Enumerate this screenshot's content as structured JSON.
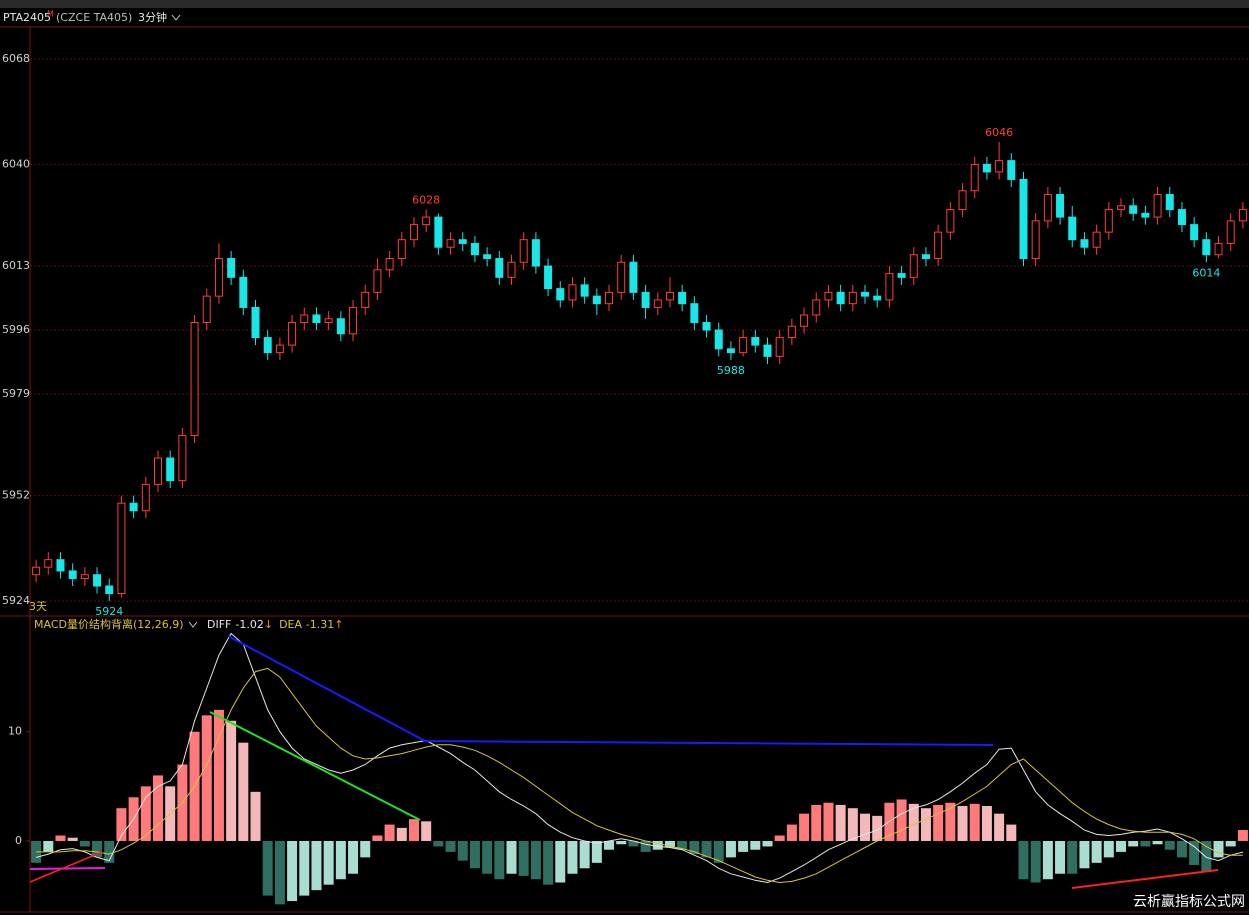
{
  "header": {
    "symbol": "PTA2405",
    "flag": "M",
    "exchange": "(CZCE TA405)",
    "period": "3分钟"
  },
  "watermark": "云析赢指标公式网",
  "chart_data": [
    {
      "type": "candlestick",
      "open": [
        5931,
        5933,
        5935,
        5932,
        5930,
        5931,
        5928,
        5926,
        5950,
        5948,
        5955,
        5962,
        5956,
        5968,
        5998,
        6005,
        6015,
        6010,
        6002,
        5994,
        5990,
        5992,
        5998,
        6000,
        5998,
        5999,
        5995,
        6002,
        6006,
        6012,
        6015,
        6020,
        6024,
        6026,
        6018,
        6020,
        6019,
        6016,
        6015,
        6010,
        6014,
        6020,
        6013,
        6007,
        6004,
        6008,
        6005,
        6003,
        6006,
        6014,
        6006,
        6002,
        6004,
        6006,
        6003,
        5998,
        5996,
        5991,
        5990,
        5994,
        5992,
        5989,
        5994,
        5997,
        6000,
        6004,
        6006,
        6003,
        6006,
        6005,
        6004,
        6011,
        6010,
        6016,
        6015,
        6022,
        6028,
        6033,
        6040,
        6038,
        6041,
        6036,
        6015,
        6025,
        6032,
        6026,
        6020,
        6018,
        6022,
        6028,
        6029,
        6027,
        6026,
        6032,
        6028,
        6024,
        6020,
        6016,
        6019,
        6025
      ],
      "high": [
        5935,
        5937,
        5937,
        5934,
        5933,
        5933,
        5930,
        5952,
        5952,
        5957,
        5964,
        5964,
        5970,
        6000,
        6007,
        6019,
        6017,
        6012,
        6004,
        5996,
        5994,
        6000,
        6002,
        6002,
        6001,
        6001,
        6004,
        6008,
        6015,
        6017,
        6022,
        6026,
        6028,
        6027,
        6022,
        6022,
        6021,
        6018,
        6017,
        6016,
        6022,
        6022,
        6015,
        6009,
        6010,
        6010,
        6007,
        6008,
        6016,
        6016,
        6008,
        6006,
        6010,
        6008,
        6005,
        6000,
        5998,
        5993,
        5996,
        5996,
        5994,
        5996,
        5999,
        6002,
        6006,
        6008,
        6008,
        6008,
        6008,
        6007,
        6013,
        6013,
        6018,
        6018,
        6024,
        6030,
        6035,
        6042,
        6042,
        6046,
        6043,
        6038,
        6027,
        6034,
        6034,
        6029,
        6022,
        6024,
        6030,
        6031,
        6031,
        6029,
        6034,
        6034,
        6030,
        6026,
        6022,
        6021,
        6027,
        6030
      ],
      "low": [
        5929,
        5931,
        5930,
        5928,
        5928,
        5926,
        5924,
        5925,
        5946,
        5946,
        5953,
        5954,
        5954,
        5966,
        5996,
        6003,
        6008,
        6000,
        5992,
        5988,
        5988,
        5990,
        5996,
        5996,
        5996,
        5993,
        5993,
        6000,
        6004,
        6010,
        6013,
        6018,
        6022,
        6016,
        6016,
        6017,
        6014,
        6013,
        6008,
        6008,
        6012,
        6011,
        6005,
        6002,
        6002,
        6003,
        6000,
        6001,
        6004,
        6004,
        5999,
        6000,
        6002,
        6001,
        5996,
        5994,
        5989,
        5988,
        5989,
        5990,
        5987,
        5987,
        5992,
        5995,
        5998,
        6002,
        6001,
        6001,
        6003,
        6002,
        6002,
        6008,
        6008,
        6013,
        6013,
        6020,
        6026,
        6031,
        6036,
        6036,
        6034,
        6013,
        6013,
        6023,
        6024,
        6018,
        6016,
        6016,
        6020,
        6026,
        6025,
        6024,
        6024,
        6026,
        6022,
        6018,
        6014,
        6015,
        6017,
        6023
      ],
      "close": [
        5933,
        5935,
        5932,
        5930,
        5931,
        5928,
        5926,
        5950,
        5948,
        5955,
        5962,
        5956,
        5968,
        5998,
        6005,
        6015,
        6010,
        6002,
        5994,
        5990,
        5992,
        5998,
        6000,
        5998,
        5999,
        5995,
        6002,
        6006,
        6012,
        6015,
        6020,
        6024,
        6026,
        6018,
        6020,
        6019,
        6016,
        6015,
        6010,
        6014,
        6020,
        6013,
        6007,
        6004,
        6008,
        6005,
        6003,
        6006,
        6014,
        6006,
        6002,
        6004,
        6006,
        6003,
        5998,
        5996,
        5991,
        5990,
        5994,
        5992,
        5989,
        5994,
        5997,
        6000,
        6004,
        6006,
        6003,
        6006,
        6005,
        6004,
        6011,
        6010,
        6016,
        6015,
        6022,
        6028,
        6033,
        6040,
        6038,
        6041,
        6036,
        6015,
        6025,
        6032,
        6026,
        6020,
        6018,
        6022,
        6028,
        6029,
        6027,
        6026,
        6032,
        6028,
        6024,
        6020,
        6016,
        6019,
        6025,
        6028
      ],
      "ylim": [
        5920.3,
        6076.5
      ],
      "yticks": [
        5924,
        5952,
        5979,
        5996,
        6013,
        6040,
        6068
      ],
      "grid": true,
      "up_color": "#ff3c3c",
      "down_color": "#19e6e6",
      "annotations": [
        6028,
        6046,
        5988,
        5924,
        6014
      ],
      "period_label": "3天"
    },
    {
      "type": "macd",
      "title": "MACD量价结构背离(12,26,9)",
      "histogram": [
        -2,
        -1,
        0.5,
        0.3,
        -0.5,
        -1.5,
        -2,
        3,
        4,
        5,
        6,
        5,
        7,
        10,
        11.5,
        12,
        11,
        9,
        4.5,
        -5,
        -5.8,
        -5.5,
        -5,
        -4.5,
        -4,
        -3.5,
        -3,
        -1.5,
        0.5,
        1.5,
        1.2,
        2,
        1.8,
        -0.5,
        -1,
        -1.8,
        -2.5,
        -3,
        -3.5,
        -3,
        -3.2,
        -3.5,
        -4,
        -3.8,
        -3,
        -2.5,
        -2,
        -0.8,
        -0.3,
        -0.5,
        -1,
        -0.8,
        -0.6,
        -0.8,
        -1.2,
        -1.5,
        -2,
        -1.5,
        -1,
        -0.8,
        -0.5,
        0.5,
        1.5,
        2.5,
        3.3,
        3.5,
        3.3,
        3,
        2.5,
        2.3,
        3.5,
        3.8,
        3.4,
        3,
        3.3,
        3.5,
        3.2,
        3.4,
        3.2,
        2.5,
        1.5,
        -3.5,
        -3.8,
        -3.5,
        -3,
        -3,
        -2.5,
        -2,
        -1.5,
        -1,
        -0.5,
        -0.5,
        -0.3,
        -0.8,
        -1.5,
        -2.2,
        -2.8,
        -1.5,
        -0.5,
        1
      ],
      "series": [
        {
          "name": "DIFF",
          "color": "#e6e6e6",
          "latest": -1.02,
          "trend": "↓",
          "values": [
            -1.5,
            -1.2,
            -0.8,
            -0.7,
            -1,
            -1.5,
            -1.8,
            0.5,
            2,
            4,
            5,
            5.5,
            7,
            11,
            14,
            17,
            19,
            18,
            15,
            12,
            10,
            8.5,
            7.5,
            7,
            6.5,
            6.2,
            6.5,
            7,
            7.8,
            8.5,
            8.8,
            9,
            9.2,
            8.6,
            8,
            7.2,
            6.5,
            5.5,
            4.5,
            3.8,
            3.2,
            2.5,
            1.5,
            0.8,
            0.3,
            0,
            -0.2,
            0,
            0.2,
            0,
            -0.3,
            -0.5,
            -0.6,
            -0.8,
            -1.3,
            -1.8,
            -2.5,
            -3,
            -3.3,
            -3.6,
            -3.8,
            -3.4,
            -2.8,
            -2.2,
            -1.5,
            -0.8,
            -0.3,
            0.2,
            0.6,
            1,
            1.8,
            2.5,
            3,
            3.3,
            3.8,
            4.5,
            5.3,
            6.2,
            7,
            8.4,
            8.5,
            6.5,
            4.5,
            3.3,
            2.5,
            1.8,
            1,
            0.6,
            0.5,
            0.6,
            0.8,
            0.9,
            1.1,
            0.8,
            0.2,
            -0.5,
            -1.5,
            -1.8,
            -1.3,
            -1.02
          ]
        },
        {
          "name": "DEA",
          "color": "#d8c53a",
          "latest": -1.31,
          "trend": "↑",
          "values": [
            -1,
            -1,
            -1,
            -0.9,
            -0.9,
            -1,
            -1.2,
            -0.8,
            -0.2,
            0.5,
            1.5,
            2.5,
            3.5,
            5,
            7,
            9.5,
            12,
            14,
            15.5,
            15.8,
            15,
            13.5,
            12,
            10.5,
            9.5,
            8.5,
            7.8,
            7.5,
            7.6,
            7.8,
            8,
            8.3,
            8.6,
            8.8,
            8.8,
            8.6,
            8.3,
            7.8,
            7.2,
            6.5,
            5.8,
            5,
            4.2,
            3.4,
            2.6,
            2,
            1.4,
            1,
            0.6,
            0.3,
            0,
            -0.2,
            -0.5,
            -0.7,
            -1,
            -1.4,
            -1.8,
            -2.3,
            -2.8,
            -3.3,
            -3.6,
            -3.8,
            -3.7,
            -3.4,
            -3,
            -2.4,
            -1.8,
            -1.2,
            -0.6,
            0,
            0.5,
            1,
            1.5,
            2,
            2.5,
            3,
            3.6,
            4.3,
            5,
            6,
            7,
            7.5,
            6.5,
            5.5,
            4.5,
            3.5,
            2.7,
            2,
            1.5,
            1.1,
            0.9,
            0.8,
            0.8,
            0.8,
            0.6,
            0.2,
            -0.5,
            -1.1,
            -1.3,
            -1.31
          ]
        }
      ],
      "ylim": [
        -6.5,
        20.5
      ],
      "yticks": [
        0,
        10
      ],
      "colors": {
        "pos_up": "#ff7b7b",
        "pos_down": "#f4b8b8",
        "neg_down": "#2f6e60",
        "neg_up": "#a9ddd1"
      }
    }
  ]
}
